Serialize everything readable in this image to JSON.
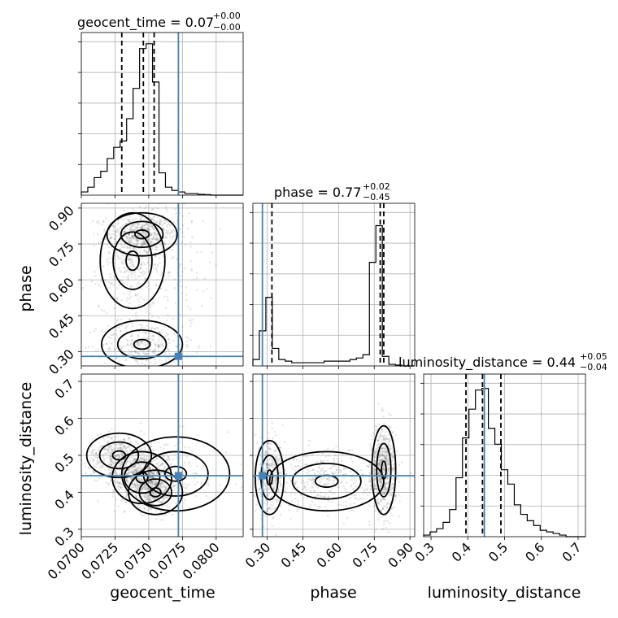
{
  "chart_data": {
    "type": "corner",
    "parameters": [
      "geocent_time",
      "phase",
      "luminosity_distance"
    ],
    "axis_labels": [
      "geocent_time",
      "phase",
      "luminosity_distance"
    ],
    "ranges": [
      [
        0.07,
        0.082
      ],
      [
        0.24,
        0.92
      ],
      [
        0.28,
        0.72
      ]
    ],
    "ticks": {
      "geocent_time": [
        "0.0700",
        "0.0725",
        "0.0750",
        "0.0775",
        "0.0800"
      ],
      "phase": [
        "0.30",
        "0.45",
        "0.60",
        "0.75",
        "0.90"
      ],
      "luminosity_distance": [
        "0.3",
        "0.4",
        "0.5",
        "0.6",
        "0.7"
      ]
    },
    "tick_values": {
      "geocent_time": [
        0.07,
        0.0725,
        0.075,
        0.0775,
        0.08
      ],
      "phase": [
        0.3,
        0.45,
        0.6,
        0.75,
        0.9
      ],
      "luminosity_distance": [
        0.3,
        0.4,
        0.5,
        0.6,
        0.7
      ]
    },
    "titles": [
      {
        "name": "geocent_time",
        "value": "0.07",
        "plus": "+0.00",
        "minus": "−0.00"
      },
      {
        "name": "phase",
        "value": "0.77",
        "plus": "+0.02",
        "minus": "−0.45"
      },
      {
        "name": "luminosity_distance",
        "value": "0.44",
        "plus": "+0.05",
        "minus": "−0.04"
      }
    ],
    "truths": [
      0.0772,
      0.28,
      0.445
    ],
    "quantiles": {
      "geocent_time": [
        0.073,
        0.0746,
        0.0754
      ],
      "phase": [
        0.32,
        0.775,
        0.79
      ],
      "luminosity_distance": [
        0.395,
        0.44,
        0.49
      ]
    },
    "histograms": {
      "geocent_time": {
        "edges": [
          0.07,
          0.07048,
          0.07096,
          0.07144,
          0.07192,
          0.0724,
          0.07288,
          0.07336,
          0.07384,
          0.07432,
          0.0748,
          0.07528,
          0.07576,
          0.07624,
          0.07672,
          0.0772,
          0.07768,
          0.07816,
          0.07864,
          0.07912,
          0.0796,
          0.08008,
          0.08056,
          0.08104,
          0.08152,
          0.082
        ],
        "counts": [
          0.02,
          0.05,
          0.11,
          0.15,
          0.23,
          0.3,
          0.34,
          0.48,
          0.67,
          0.92,
          0.95,
          0.71,
          0.14,
          0.05,
          0.03,
          0.02,
          0.01,
          0.01,
          0.005,
          0.003,
          0,
          0,
          0,
          0,
          0
        ]
      },
      "phase": {
        "edges": [
          0.24,
          0.2672,
          0.2944,
          0.3216,
          0.3488,
          0.376,
          0.4032,
          0.4304,
          0.4576,
          0.4848,
          0.512,
          0.5392,
          0.5664,
          0.5936,
          0.6208,
          0.648,
          0.6752,
          0.7024,
          0.7296,
          0.7568,
          0.784,
          0.8112,
          0.8384,
          0.8656,
          0.8928,
          0.92
        ],
        "counts": [
          0.04,
          0.22,
          0.43,
          0.11,
          0.04,
          0.03,
          0.02,
          0.02,
          0.02,
          0.02,
          0.02,
          0.03,
          0.03,
          0.03,
          0.03,
          0.04,
          0.05,
          0.07,
          0.65,
          0.88,
          0.06,
          0.01,
          0.005,
          0,
          0
        ]
      },
      "luminosity_distance": {
        "edges": [
          0.28,
          0.2976,
          0.3152,
          0.3328,
          0.3504,
          0.368,
          0.3856,
          0.4032,
          0.4208,
          0.4384,
          0.456,
          0.4736,
          0.4912,
          0.5088,
          0.5264,
          0.544,
          0.5616,
          0.5792,
          0.5968,
          0.6144,
          0.632,
          0.6496,
          0.6672,
          0.6848,
          0.7024,
          0.72
        ],
        "counts": [
          0.01,
          0.03,
          0.05,
          0.09,
          0.17,
          0.37,
          0.62,
          0.8,
          0.92,
          0.93,
          0.68,
          0.58,
          0.42,
          0.33,
          0.2,
          0.14,
          0.1,
          0.07,
          0.04,
          0.03,
          0.02,
          0.01,
          0,
          0,
          0
        ]
      }
    },
    "density_2d": [
      {
        "x": "geocent_time",
        "y": "phase",
        "clusters": [
          {
            "cx": 0.0745,
            "cy": 0.79,
            "sx": 0.0013,
            "sy": 0.045,
            "n": 500
          },
          {
            "cx": 0.0738,
            "cy": 0.68,
            "sx": 0.0012,
            "sy": 0.1,
            "n": 300
          },
          {
            "cx": 0.0745,
            "cy": 0.33,
            "sx": 0.0015,
            "sy": 0.05,
            "n": 280
          },
          {
            "cx": 0.076,
            "cy": 0.6,
            "sx": 0.0022,
            "sy": 0.25,
            "n": 260
          }
        ]
      },
      {
        "x": "geocent_time",
        "y": "luminosity_distance",
        "clusters": [
          {
            "cx": 0.0745,
            "cy": 0.44,
            "sx": 0.0011,
            "sy": 0.035,
            "n": 600
          },
          {
            "cx": 0.0728,
            "cy": 0.5,
            "sx": 0.0012,
            "sy": 0.03,
            "n": 400
          },
          {
            "cx": 0.0755,
            "cy": 0.4,
            "sx": 0.001,
            "sy": 0.03,
            "n": 300
          },
          {
            "cx": 0.077,
            "cy": 0.45,
            "sx": 0.002,
            "sy": 0.05,
            "n": 120
          }
        ]
      },
      {
        "x": "phase",
        "y": "luminosity_distance",
        "clusters": [
          {
            "cx": 0.31,
            "cy": 0.44,
            "sx": 0.03,
            "sy": 0.05,
            "n": 350
          },
          {
            "cx": 0.79,
            "cy": 0.46,
            "sx": 0.025,
            "sy": 0.06,
            "n": 600
          },
          {
            "cx": 0.55,
            "cy": 0.43,
            "sx": 0.12,
            "sy": 0.04,
            "n": 350
          }
        ]
      }
    ],
    "grid": true
  }
}
